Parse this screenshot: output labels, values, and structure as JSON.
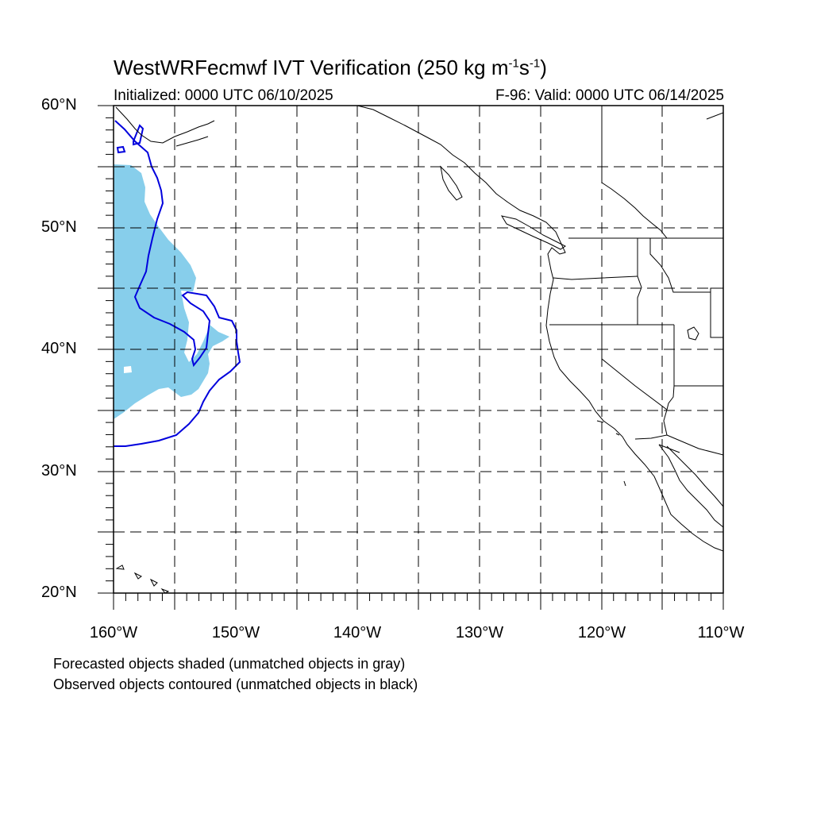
{
  "title": {
    "main": "WestWRFecmwf IVT Verification (250 kg m",
    "exp1": "-1",
    "mid": "s",
    "exp2": "-1",
    "close": ")"
  },
  "subtitle_left": "Initialized: 0000 UTC 06/10/2025",
  "subtitle_right": "F-96: Valid: 0000 UTC 06/14/2025",
  "lat_labels": [
    "60°N",
    "50°N",
    "40°N",
    "30°N",
    "20°N"
  ],
  "lon_labels": [
    "160°W",
    "150°W",
    "140°W",
    "130°W",
    "120°W",
    "110°W"
  ],
  "notes": [
    "Forecasted objects shaded (unmatched objects in gray)",
    "Observed objects contoured (unmatched objects in black)"
  ],
  "map": {
    "lon_range": [
      -160,
      -110
    ],
    "lat_range": [
      20,
      60
    ],
    "colors": {
      "forecast_fill": "#87ceeb",
      "observed_contour": "#0000dd",
      "coastline": "#000000",
      "grid": "#000000"
    },
    "icons": [
      "coastline-icon",
      "state-border-icon"
    ]
  }
}
